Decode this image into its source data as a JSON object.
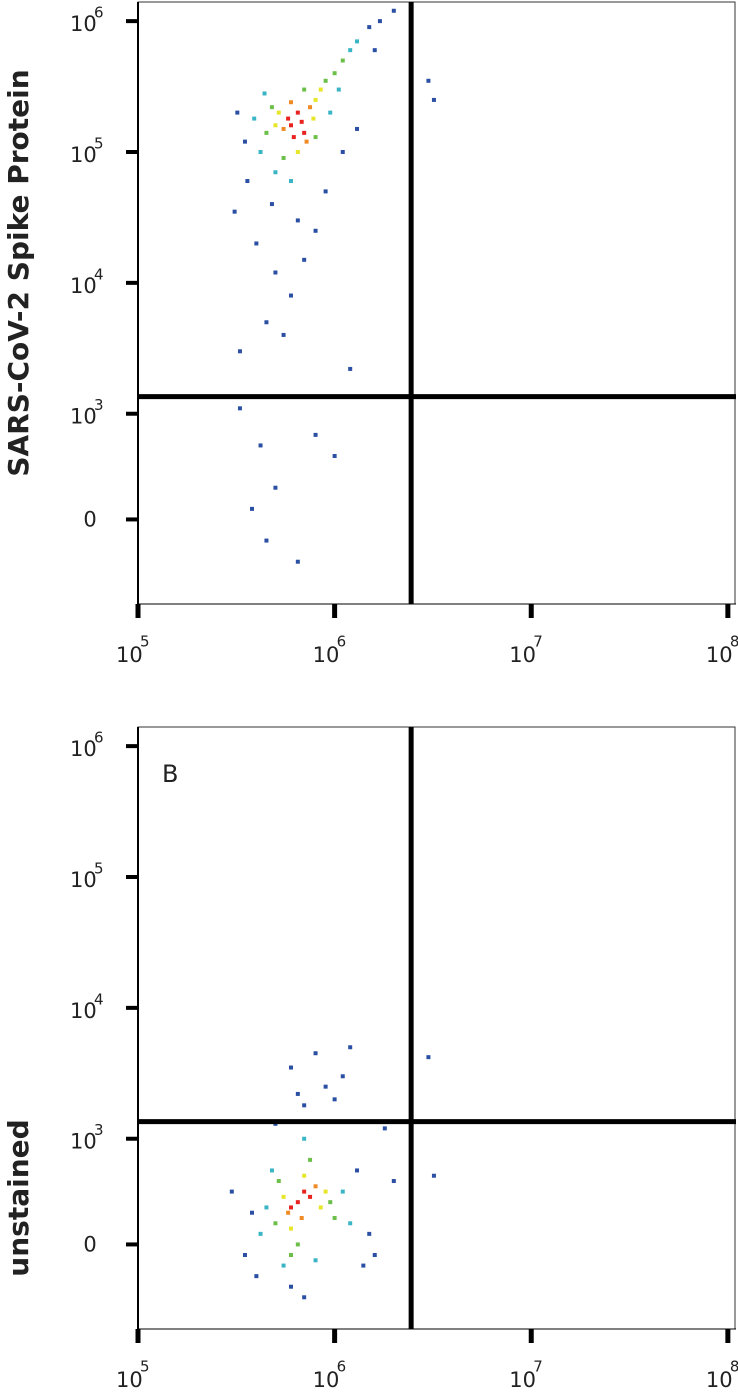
{
  "chart_data": [
    {
      "type": "scatter",
      "ylabel": "SARS-CoV-2 Spike Protein",
      "xscale": "log",
      "yscale": "biexponential",
      "xlim": [
        100000,
        110000000
      ],
      "ylim": [
        -800,
        1400000
      ],
      "xticks": [
        {
          "value": 100000,
          "label": "10",
          "sup": "5"
        },
        {
          "value": 1000000,
          "label": "10",
          "sup": "6"
        },
        {
          "value": 10000000,
          "label": "10",
          "sup": "7"
        },
        {
          "value": 100000000,
          "label": "10",
          "sup": "8"
        }
      ],
      "yticks": [
        0,
        {
          "value": 1000,
          "label": "10",
          "sup": "3"
        },
        {
          "value": 10000,
          "label": "10",
          "sup": "4"
        },
        {
          "value": 100000,
          "label": "10",
          "sup": "5"
        },
        {
          "value": 1000000,
          "label": "10",
          "sup": "6"
        }
      ],
      "gates": {
        "x": 2450000,
        "y": 1350
      },
      "series": [
        {
          "color": "#e8231f",
          "x": [
            600000,
            650000,
            700000,
            580000,
            680000,
            620000
          ],
          "values": [
            160000,
            200000,
            140000,
            180000,
            170000,
            130000
          ]
        },
        {
          "color": "#f08a24",
          "x": [
            550000,
            750000,
            600000,
            720000
          ],
          "values": [
            150000,
            220000,
            240000,
            120000
          ]
        },
        {
          "color": "#e8e62a",
          "x": [
            500000,
            800000,
            650000,
            520000,
            780000,
            850000
          ],
          "values": [
            160000,
            250000,
            100000,
            200000,
            180000,
            300000
          ]
        },
        {
          "color": "#6cc04a",
          "x": [
            450000,
            900000,
            550000,
            1000000,
            480000,
            700000,
            800000,
            1100000
          ],
          "values": [
            140000,
            350000,
            90000,
            400000,
            220000,
            300000,
            130000,
            500000
          ]
        },
        {
          "color": "#3ab5c6",
          "x": [
            420000,
            1200000,
            500000,
            390000,
            950000,
            1300000,
            600000,
            440000,
            1050000
          ],
          "values": [
            100000,
            600000,
            70000,
            180000,
            200000,
            700000,
            60000,
            280000,
            300000
          ]
        },
        {
          "color": "#2b4fa3",
          "x": [
            350000,
            320000,
            1500000,
            1700000,
            310000,
            400000,
            500000,
            600000,
            700000,
            450000,
            550000,
            330000,
            800000,
            650000,
            360000,
            480000,
            900000,
            1100000,
            1300000,
            1600000,
            2000000,
            3000000,
            3200000,
            330000,
            420000,
            500000,
            380000,
            450000,
            650000,
            800000,
            1000000,
            1200000
          ],
          "values": [
            120000,
            200000,
            900000,
            1000000,
            35000,
            20000,
            12000,
            8000,
            15000,
            5000,
            4000,
            3000,
            25000,
            30000,
            60000,
            40000,
            50000,
            100000,
            150000,
            600000,
            1200000,
            350000,
            250000,
            1100,
            700,
            300,
            100,
            -200,
            -400,
            800,
            600,
            2200
          ]
        }
      ]
    },
    {
      "type": "scatter",
      "ylabel": "unstained",
      "annotation": "B",
      "xscale": "log",
      "yscale": "biexponential",
      "xlim": [
        100000,
        110000000
      ],
      "ylim": [
        -800,
        1400000
      ],
      "xticks": [
        {
          "value": 100000,
          "label": "10",
          "sup": "5"
        },
        {
          "value": 1000000,
          "label": "10",
          "sup": "6"
        },
        {
          "value": 10000000,
          "label": "10",
          "sup": "7"
        },
        {
          "value": 100000000,
          "label": "10",
          "sup": "8"
        }
      ],
      "yticks": [
        0,
        {
          "value": 1000,
          "label": "10",
          "sup": "3"
        },
        {
          "value": 10000,
          "label": "10",
          "sup": "4"
        },
        {
          "value": 100000,
          "label": "10",
          "sup": "5"
        },
        {
          "value": 1000000,
          "label": "10",
          "sup": "6"
        }
      ],
      "gates": {
        "x": 2450000,
        "y": 1350
      },
      "series": [
        {
          "color": "#e8231f",
          "x": [
            650000,
            700000,
            600000,
            750000
          ],
          "values": [
            400,
            500,
            350,
            450
          ]
        },
        {
          "color": "#f08a24",
          "x": [
            580000,
            800000,
            680000
          ],
          "values": [
            300,
            550,
            250
          ]
        },
        {
          "color": "#e8e62a",
          "x": [
            550000,
            850000,
            600000,
            700000,
            900000
          ],
          "values": [
            450,
            350,
            150,
            650,
            500
          ]
        },
        {
          "color": "#6cc04a",
          "x": [
            500000,
            950000,
            650000,
            520000,
            1000000,
            750000,
            600000
          ],
          "values": [
            200,
            400,
            0,
            600,
            250,
            800,
            -100
          ]
        },
        {
          "color": "#3ab5c6",
          "x": [
            450000,
            1100000,
            550000,
            800000,
            480000,
            1200000,
            700000,
            420000
          ],
          "values": [
            350,
            500,
            -200,
            -150,
            700,
            200,
            1000,
            100
          ]
        },
        {
          "color": "#2b4fa3",
          "x": [
            380000,
            350000,
            1300000,
            1500000,
            600000,
            700000,
            400000,
            1400000,
            500000,
            700000,
            900000,
            1100000,
            800000,
            600000,
            1200000,
            1000000,
            650000,
            3000000,
            3200000,
            1800000,
            2000000,
            300000,
            1600000
          ],
          "values": [
            300,
            -100,
            700,
            100,
            -400,
            -500,
            -300,
            -200,
            1300,
            1800,
            2500,
            3000,
            4500,
            3500,
            5000,
            2000,
            2200,
            4200,
            650,
            1200,
            600,
            500,
            -100
          ]
        }
      ]
    }
  ]
}
